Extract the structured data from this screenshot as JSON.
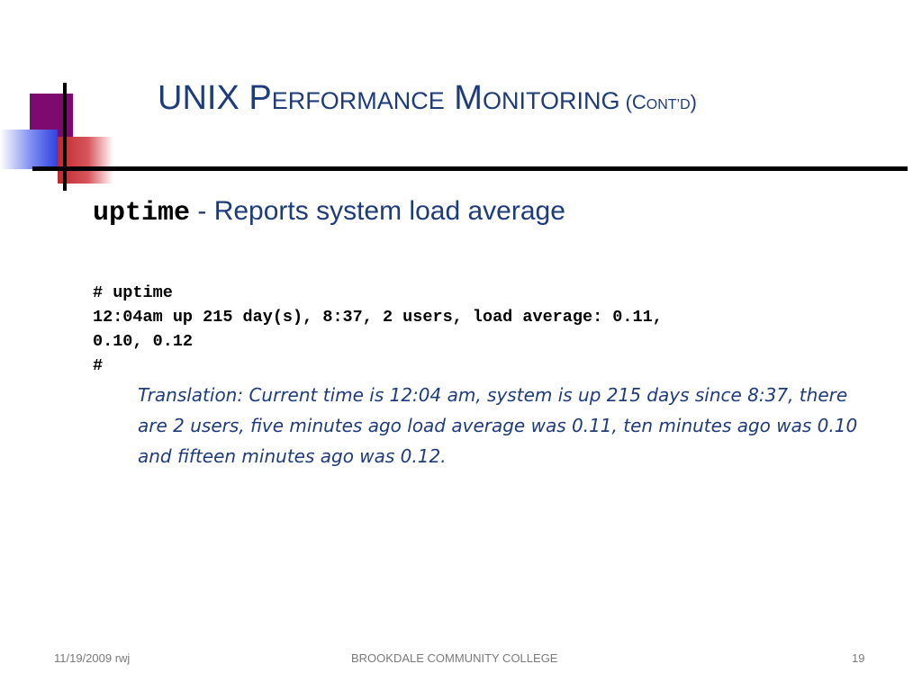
{
  "slide": {
    "title_main": "UNIX P",
    "title_small_1": "ERFORMANCE",
    "title_mid": " M",
    "title_small_2": "ONITORING",
    "title_cont": " (C",
    "title_cont_small": "ONT’D",
    "title_cont_end": ")",
    "subheading": {
      "command": "uptime",
      "description": " - Reports system load average"
    },
    "code_lines": [
      "# uptime",
      "12:04am up 215 day(s), 8:37, 2 users, load average: 0.11,",
      "0.10, 0.12",
      "#"
    ],
    "translation": "Translation: Current time is 12:04 am, system is up 215 days since 8:37, there are 2 users, five minutes ago load average was 0.11, ten minutes ago was 0.10 and fifteen minutes ago was 0.12."
  },
  "footer": {
    "date": "11/19/2009 rwj",
    "organization": "BROOKDALE COMMUNITY COLLEGE",
    "page_number": "19"
  },
  "colors": {
    "title": "#1f3c7a",
    "accent_purple": "#7e0a6f",
    "accent_red": "#c0282e",
    "accent_blue": "#3140e0"
  }
}
